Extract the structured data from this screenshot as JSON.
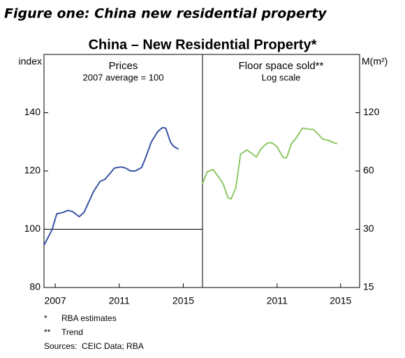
{
  "heading": "Figure one: China new residential property",
  "title": "China – New Residential Property*",
  "footnotes": [
    {
      "marker": "*",
      "text": "RBA estimates"
    },
    {
      "marker": "**",
      "text": "Trend"
    }
  ],
  "sources": "Sources:  CEIC Data; RBA",
  "chart_data": [
    {
      "type": "line",
      "title": "Prices",
      "subtitle": "2007 average = 100",
      "y_label": "index",
      "axis_side": "left",
      "log_scale": false,
      "color": "#3b54a5",
      "reference_line": 100,
      "xlim": [
        2006.3,
        2016.2
      ],
      "xticks": [
        2007,
        2011,
        2015
      ],
      "ylim": [
        80,
        160
      ],
      "yticks": [
        80,
        100,
        120,
        140
      ],
      "x": [
        2006.3,
        2006.8,
        2007.1,
        2007.5,
        2007.8,
        2008.1,
        2008.5,
        2008.8,
        2009.1,
        2009.4,
        2009.8,
        2010.1,
        2010.4,
        2010.7,
        2011.1,
        2011.4,
        2011.7,
        2012.0,
        2012.4,
        2012.7,
        2013.0,
        2013.4,
        2013.7,
        2013.9,
        2014.2,
        2014.4,
        2014.7
      ],
      "values": [
        94.5,
        99.8,
        105.3,
        105.8,
        106.5,
        106.0,
        104.3,
        105.8,
        109.4,
        113.0,
        116.4,
        117.1,
        119.0,
        121.0,
        121.4,
        121.0,
        120.0,
        120.0,
        121.2,
        125.3,
        129.9,
        133.5,
        134.9,
        134.7,
        129.9,
        128.4,
        127.5
      ]
    },
    {
      "type": "line",
      "title": "Floor space sold**",
      "subtitle": "Log scale",
      "y_label": "M(m²)",
      "axis_side": "right",
      "log_scale": true,
      "color": "#8fc866",
      "xlim": [
        2006.3,
        2016.2
      ],
      "xticks": [
        2011,
        2015
      ],
      "ylim": [
        15,
        240
      ],
      "yticks": [
        15,
        30,
        60,
        120
      ],
      "x": [
        2006.3,
        2006.6,
        2006.96,
        2007.3,
        2007.6,
        2007.9,
        2008.1,
        2008.4,
        2008.7,
        2009.1,
        2009.4,
        2009.7,
        2010.0,
        2010.4,
        2010.7,
        2011.0,
        2011.4,
        2011.6,
        2011.9,
        2012.2,
        2012.6,
        2012.9,
        2013.3,
        2013.6,
        2013.9,
        2014.2,
        2014.6,
        2014.8
      ],
      "values": [
        51.6,
        59.5,
        61,
        56.1,
        51.6,
        43.7,
        43,
        49.1,
        73.3,
        77.1,
        73.9,
        70.9,
        78.4,
        83.8,
        83.8,
        79.7,
        70.3,
        70.3,
        83.1,
        88.8,
        99.9,
        99.0,
        98.2,
        92.7,
        87.4,
        86.6,
        83.8,
        83.1
      ]
    }
  ]
}
